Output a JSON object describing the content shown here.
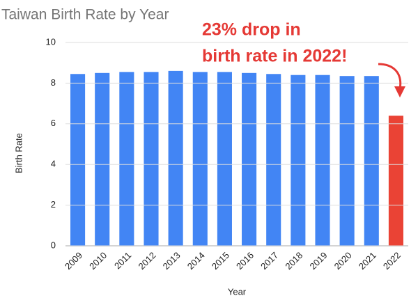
{
  "chart_data": {
    "type": "bar",
    "title": "Taiwan Birth Rate by Year",
    "annotation": [
      "23% drop in",
      "birth rate in 2022!"
    ],
    "x_label": "Year",
    "y_label": "Birth Rate",
    "categories": [
      "2009",
      "2010",
      "2011",
      "2012",
      "2013",
      "2014",
      "2015",
      "2016",
      "2017",
      "2018",
      "2019",
      "2020",
      "2021",
      "2022"
    ],
    "values": [
      8.45,
      8.5,
      8.55,
      8.55,
      8.6,
      8.55,
      8.55,
      8.5,
      8.45,
      8.4,
      8.4,
      8.35,
      8.35,
      6.4
    ],
    "colors": [
      "#4285f4",
      "#4285f4",
      "#4285f4",
      "#4285f4",
      "#4285f4",
      "#4285f4",
      "#4285f4",
      "#4285f4",
      "#4285f4",
      "#4285f4",
      "#4285f4",
      "#4285f4",
      "#4285f4",
      "#ea4335"
    ],
    "ylim": [
      0,
      10
    ],
    "yticks": [
      0,
      2,
      4,
      6,
      8,
      10
    ],
    "grid": true
  }
}
